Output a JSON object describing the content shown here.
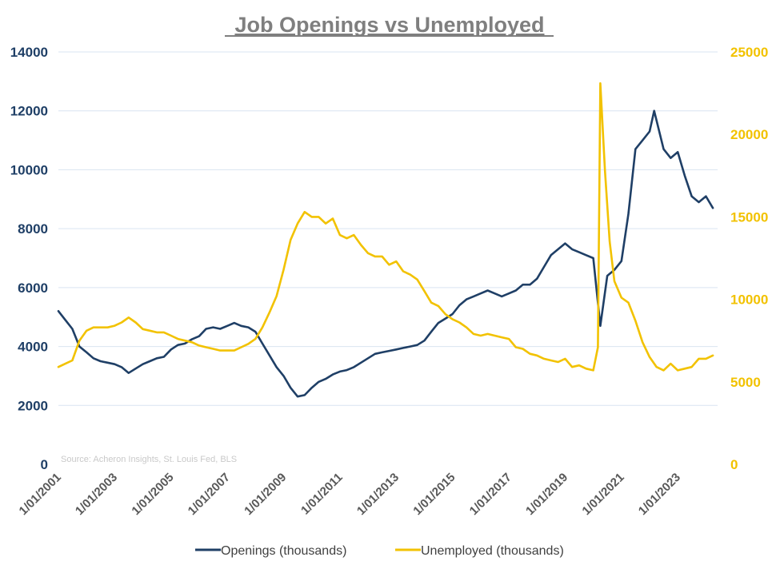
{
  "chart_data": {
    "type": "line",
    "title": "Job Openings vs Unemployed",
    "source": "Source: Acheron Insights, St. Louis Fed, BLS",
    "x_range": [
      "2001-01-01",
      "2024-06-01"
    ],
    "x_ticks": [
      "1/01/2001",
      "1/01/2003",
      "1/01/2005",
      "1/01/2007",
      "1/01/2009",
      "1/01/2011",
      "1/01/2013",
      "1/01/2015",
      "1/01/2017",
      "1/01/2019",
      "1/01/2021",
      "1/01/2023"
    ],
    "y_left": {
      "range": [
        0,
        14000
      ],
      "ticks": [
        "0",
        "2000",
        "4000",
        "6000",
        "8000",
        "10000",
        "12000",
        "14000"
      ]
    },
    "y_right": {
      "range": [
        0,
        25000
      ],
      "ticks": [
        "0",
        "5000",
        "10000",
        "15000",
        "20000",
        "25000"
      ]
    },
    "grid": true,
    "legend_position": "bottom",
    "series": [
      {
        "name": "Openings (thousands)",
        "axis": "left",
        "color": "#1f3f66",
        "points": [
          [
            "2001-01-01",
            5200
          ],
          [
            "2001-04-01",
            4900
          ],
          [
            "2001-07-01",
            4600
          ],
          [
            "2001-10-01",
            4000
          ],
          [
            "2002-01-01",
            3800
          ],
          [
            "2002-04-01",
            3600
          ],
          [
            "2002-07-01",
            3500
          ],
          [
            "2002-10-01",
            3450
          ],
          [
            "2003-01-01",
            3400
          ],
          [
            "2003-04-01",
            3300
          ],
          [
            "2003-07-01",
            3100
          ],
          [
            "2003-10-01",
            3250
          ],
          [
            "2004-01-01",
            3400
          ],
          [
            "2004-04-01",
            3500
          ],
          [
            "2004-07-01",
            3600
          ],
          [
            "2004-10-01",
            3650
          ],
          [
            "2005-01-01",
            3900
          ],
          [
            "2005-04-01",
            4050
          ],
          [
            "2005-07-01",
            4100
          ],
          [
            "2005-10-01",
            4250
          ],
          [
            "2006-01-01",
            4350
          ],
          [
            "2006-04-01",
            4600
          ],
          [
            "2006-07-01",
            4650
          ],
          [
            "2006-10-01",
            4600
          ],
          [
            "2007-01-01",
            4700
          ],
          [
            "2007-04-01",
            4800
          ],
          [
            "2007-07-01",
            4700
          ],
          [
            "2007-10-01",
            4650
          ],
          [
            "2008-01-01",
            4500
          ],
          [
            "2008-04-01",
            4100
          ],
          [
            "2008-07-01",
            3700
          ],
          [
            "2008-10-01",
            3300
          ],
          [
            "2009-01-01",
            3000
          ],
          [
            "2009-04-01",
            2600
          ],
          [
            "2009-07-01",
            2300
          ],
          [
            "2009-10-01",
            2350
          ],
          [
            "2010-01-01",
            2600
          ],
          [
            "2010-04-01",
            2800
          ],
          [
            "2010-07-01",
            2900
          ],
          [
            "2010-10-01",
            3050
          ],
          [
            "2011-01-01",
            3150
          ],
          [
            "2011-04-01",
            3200
          ],
          [
            "2011-07-01",
            3300
          ],
          [
            "2011-10-01",
            3450
          ],
          [
            "2012-01-01",
            3600
          ],
          [
            "2012-04-01",
            3750
          ],
          [
            "2012-07-01",
            3800
          ],
          [
            "2012-10-01",
            3850
          ],
          [
            "2013-01-01",
            3900
          ],
          [
            "2013-04-01",
            3950
          ],
          [
            "2013-07-01",
            4000
          ],
          [
            "2013-10-01",
            4050
          ],
          [
            "2014-01-01",
            4200
          ],
          [
            "2014-04-01",
            4500
          ],
          [
            "2014-07-01",
            4800
          ],
          [
            "2014-10-01",
            4950
          ],
          [
            "2015-01-01",
            5100
          ],
          [
            "2015-04-01",
            5400
          ],
          [
            "2015-07-01",
            5600
          ],
          [
            "2015-10-01",
            5700
          ],
          [
            "2016-01-01",
            5800
          ],
          [
            "2016-04-01",
            5900
          ],
          [
            "2016-07-01",
            5800
          ],
          [
            "2016-10-01",
            5700
          ],
          [
            "2017-01-01",
            5800
          ],
          [
            "2017-04-01",
            5900
          ],
          [
            "2017-07-01",
            6100
          ],
          [
            "2017-10-01",
            6100
          ],
          [
            "2018-01-01",
            6300
          ],
          [
            "2018-04-01",
            6700
          ],
          [
            "2018-07-01",
            7100
          ],
          [
            "2018-10-01",
            7300
          ],
          [
            "2019-01-01",
            7500
          ],
          [
            "2019-04-01",
            7300
          ],
          [
            "2019-07-01",
            7200
          ],
          [
            "2019-10-01",
            7100
          ],
          [
            "2020-01-01",
            7000
          ],
          [
            "2020-04-01",
            4700
          ],
          [
            "2020-07-01",
            6400
          ],
          [
            "2020-10-01",
            6600
          ],
          [
            "2021-01-01",
            6900
          ],
          [
            "2021-04-01",
            8500
          ],
          [
            "2021-07-01",
            10700
          ],
          [
            "2021-10-01",
            11000
          ],
          [
            "2022-01-01",
            11300
          ],
          [
            "2022-03-01",
            12000
          ],
          [
            "2022-07-01",
            10700
          ],
          [
            "2022-10-01",
            10400
          ],
          [
            "2023-01-01",
            10600
          ],
          [
            "2023-04-01",
            9800
          ],
          [
            "2023-07-01",
            9100
          ],
          [
            "2023-10-01",
            8900
          ],
          [
            "2024-01-01",
            9100
          ],
          [
            "2024-04-01",
            8700
          ]
        ]
      },
      {
        "name": "Unemployed (thousands)",
        "axis": "right",
        "color": "#f2c200",
        "points": [
          [
            "2001-01-01",
            5900
          ],
          [
            "2001-04-01",
            6100
          ],
          [
            "2001-07-01",
            6300
          ],
          [
            "2001-10-01",
            7500
          ],
          [
            "2002-01-01",
            8100
          ],
          [
            "2002-04-01",
            8300
          ],
          [
            "2002-07-01",
            8300
          ],
          [
            "2002-10-01",
            8300
          ],
          [
            "2003-01-01",
            8400
          ],
          [
            "2003-04-01",
            8600
          ],
          [
            "2003-07-01",
            8900
          ],
          [
            "2003-10-01",
            8600
          ],
          [
            "2004-01-01",
            8200
          ],
          [
            "2004-04-01",
            8100
          ],
          [
            "2004-07-01",
            8000
          ],
          [
            "2004-10-01",
            8000
          ],
          [
            "2005-01-01",
            7800
          ],
          [
            "2005-04-01",
            7600
          ],
          [
            "2005-07-01",
            7500
          ],
          [
            "2005-10-01",
            7400
          ],
          [
            "2006-01-01",
            7200
          ],
          [
            "2006-04-01",
            7100
          ],
          [
            "2006-07-01",
            7000
          ],
          [
            "2006-10-01",
            6900
          ],
          [
            "2007-01-01",
            6900
          ],
          [
            "2007-04-01",
            6900
          ],
          [
            "2007-07-01",
            7100
          ],
          [
            "2007-10-01",
            7300
          ],
          [
            "2008-01-01",
            7600
          ],
          [
            "2008-04-01",
            8300
          ],
          [
            "2008-07-01",
            9200
          ],
          [
            "2008-10-01",
            10200
          ],
          [
            "2009-01-01",
            11800
          ],
          [
            "2009-04-01",
            13600
          ],
          [
            "2009-07-01",
            14600
          ],
          [
            "2009-10-01",
            15300
          ],
          [
            "2010-01-01",
            15000
          ],
          [
            "2010-04-01",
            15000
          ],
          [
            "2010-07-01",
            14600
          ],
          [
            "2010-10-01",
            14900
          ],
          [
            "2011-01-01",
            13900
          ],
          [
            "2011-04-01",
            13700
          ],
          [
            "2011-07-01",
            13900
          ],
          [
            "2011-10-01",
            13300
          ],
          [
            "2012-01-01",
            12800
          ],
          [
            "2012-04-01",
            12600
          ],
          [
            "2012-07-01",
            12600
          ],
          [
            "2012-10-01",
            12100
          ],
          [
            "2013-01-01",
            12300
          ],
          [
            "2013-04-01",
            11700
          ],
          [
            "2013-07-01",
            11500
          ],
          [
            "2013-10-01",
            11200
          ],
          [
            "2014-01-01",
            10500
          ],
          [
            "2014-04-01",
            9800
          ],
          [
            "2014-07-01",
            9600
          ],
          [
            "2014-10-01",
            9100
          ],
          [
            "2015-01-01",
            8800
          ],
          [
            "2015-04-01",
            8600
          ],
          [
            "2015-07-01",
            8300
          ],
          [
            "2015-10-01",
            7900
          ],
          [
            "2016-01-01",
            7800
          ],
          [
            "2016-04-01",
            7900
          ],
          [
            "2016-07-01",
            7800
          ],
          [
            "2016-10-01",
            7700
          ],
          [
            "2017-01-01",
            7600
          ],
          [
            "2017-04-01",
            7100
          ],
          [
            "2017-07-01",
            7000
          ],
          [
            "2017-10-01",
            6700
          ],
          [
            "2018-01-01",
            6600
          ],
          [
            "2018-04-01",
            6400
          ],
          [
            "2018-07-01",
            6300
          ],
          [
            "2018-10-01",
            6200
          ],
          [
            "2019-01-01",
            6400
          ],
          [
            "2019-04-01",
            5900
          ],
          [
            "2019-07-01",
            6000
          ],
          [
            "2019-10-01",
            5800
          ],
          [
            "2020-01-01",
            5700
          ],
          [
            "2020-03-01",
            7100
          ],
          [
            "2020-04-01",
            23100
          ],
          [
            "2020-06-01",
            17800
          ],
          [
            "2020-08-01",
            13500
          ],
          [
            "2020-10-01",
            11100
          ],
          [
            "2021-01-01",
            10100
          ],
          [
            "2021-04-01",
            9800
          ],
          [
            "2021-07-01",
            8700
          ],
          [
            "2021-10-01",
            7400
          ],
          [
            "2022-01-01",
            6500
          ],
          [
            "2022-04-01",
            5900
          ],
          [
            "2022-07-01",
            5700
          ],
          [
            "2022-10-01",
            6100
          ],
          [
            "2023-01-01",
            5700
          ],
          [
            "2023-04-01",
            5800
          ],
          [
            "2023-07-01",
            5900
          ],
          [
            "2023-10-01",
            6400
          ],
          [
            "2024-01-01",
            6400
          ],
          [
            "2024-04-01",
            6600
          ]
        ]
      }
    ]
  }
}
